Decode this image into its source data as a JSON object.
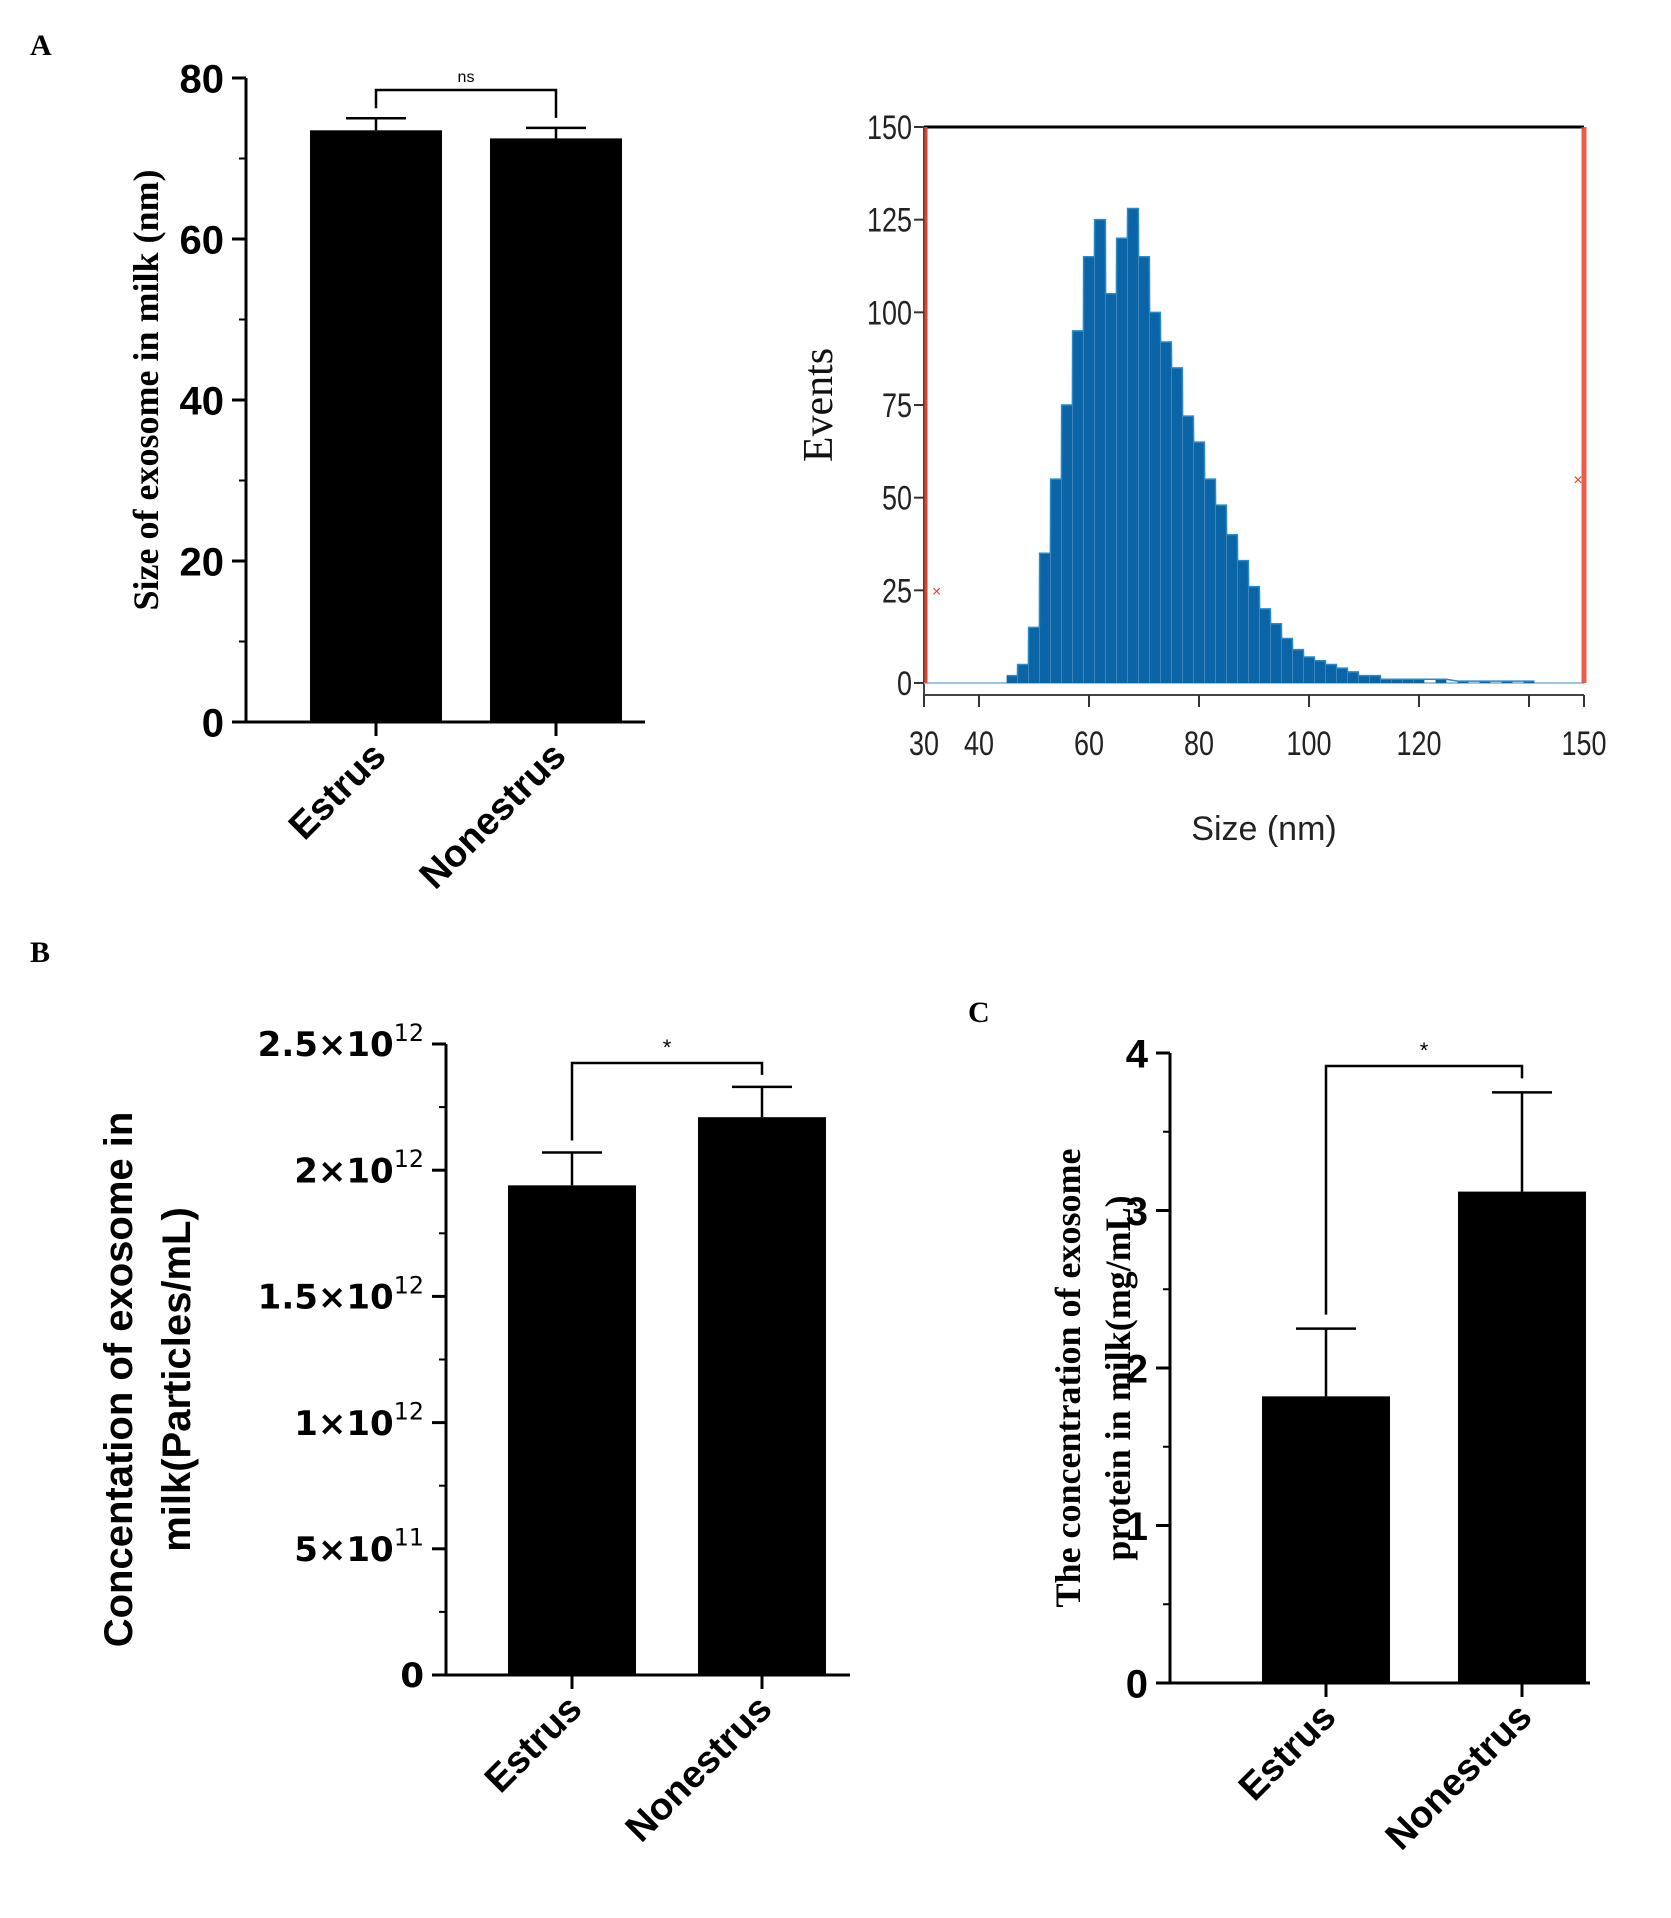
{
  "colors": {
    "bar": "#000000",
    "hist": "#0b64a6",
    "hist_light": "#2a8ac8",
    "gate": "#e8402a",
    "axis": "#000000"
  },
  "panels": {
    "A": {
      "label": "A"
    },
    "B": {
      "label": "B"
    },
    "C": {
      "label": "C"
    }
  },
  "chart_data": [
    {
      "panel": "A",
      "type": "bar",
      "categories": [
        "Estrus",
        "Nonestrus"
      ],
      "values": [
        73.5,
        72.5
      ],
      "errors": [
        1.5,
        1.3
      ],
      "ylabel": "Size of exosome in  milk (nm)",
      "ylim": [
        0,
        80
      ],
      "yticks": [
        0,
        20,
        40,
        60,
        80
      ],
      "ytick_labels": [
        "0",
        "20",
        "40",
        "60",
        "80"
      ],
      "significance": "ns"
    },
    {
      "panel": "A",
      "type": "area",
      "title": "",
      "xlabel": "Size (nm)",
      "ylabel": "Events",
      "xlim": [
        30,
        150
      ],
      "ylim": [
        0,
        150
      ],
      "xticks": [
        30,
        40,
        60,
        80,
        100,
        120,
        150
      ],
      "xtick_labels": [
        "30",
        "40",
        "60",
        "80",
        "100",
        "120",
        "150"
      ],
      "yticks": [
        0,
        25,
        50,
        75,
        100,
        125,
        150
      ],
      "ytick_labels": [
        "0",
        "25",
        "50",
        "75",
        "100",
        "125",
        "150"
      ],
      "x": [
        46,
        48,
        50,
        52,
        54,
        56,
        58,
        60,
        62,
        64,
        66,
        68,
        70,
        72,
        74,
        76,
        78,
        80,
        82,
        84,
        86,
        88,
        90,
        92,
        94,
        96,
        98,
        100,
        102,
        104,
        106,
        108,
        110,
        112,
        114,
        116,
        118,
        120,
        124,
        128,
        132,
        136,
        140
      ],
      "y": [
        2,
        5,
        15,
        35,
        55,
        75,
        95,
        115,
        125,
        105,
        120,
        128,
        115,
        100,
        92,
        85,
        72,
        65,
        55,
        48,
        40,
        33,
        26,
        20,
        16,
        12,
        9,
        7,
        6,
        5,
        4,
        3,
        2,
        2,
        1,
        1,
        1,
        1,
        1,
        0.5,
        0.5,
        0.5,
        0.5
      ],
      "gate_range": [
        30,
        150
      ]
    },
    {
      "panel": "B",
      "type": "bar",
      "categories": [
        "Estrus",
        "Nonestrus"
      ],
      "values": [
        1940000000000.0,
        2210000000000.0
      ],
      "errors": [
        130000000000.0,
        120000000000.0
      ],
      "ylabel_line1": "Concentation of exosome in",
      "ylabel_line2": "milk(Particles/mL)",
      "ylim": [
        0,
        2500000000000.0
      ],
      "yticks": [
        0,
        500000000000.0,
        1000000000000.0,
        1500000000000.0,
        2000000000000.0,
        2500000000000.0
      ],
      "ytick_labels": [
        {
          "base": "0",
          "exp": ""
        },
        {
          "base": "5×10",
          "exp": "11"
        },
        {
          "base": "1×10",
          "exp": "12"
        },
        {
          "base": "1.5×10",
          "exp": "12"
        },
        {
          "base": "2×10",
          "exp": "12"
        },
        {
          "base": "2.5×10",
          "exp": "12"
        }
      ],
      "significance": "*"
    },
    {
      "panel": "C",
      "type": "bar",
      "categories": [
        "Estrus",
        "Nonestrus"
      ],
      "values": [
        1.82,
        3.12
      ],
      "errors": [
        0.43,
        0.63
      ],
      "ylabel_line1": "The concentration of exosome",
      "ylabel_line2": "protein in milk(mg/mL)",
      "ylim": [
        0,
        4
      ],
      "yticks": [
        0,
        1,
        2,
        3,
        4
      ],
      "ytick_labels": [
        "0",
        "1",
        "2",
        "3",
        "4"
      ],
      "significance": "*"
    }
  ]
}
